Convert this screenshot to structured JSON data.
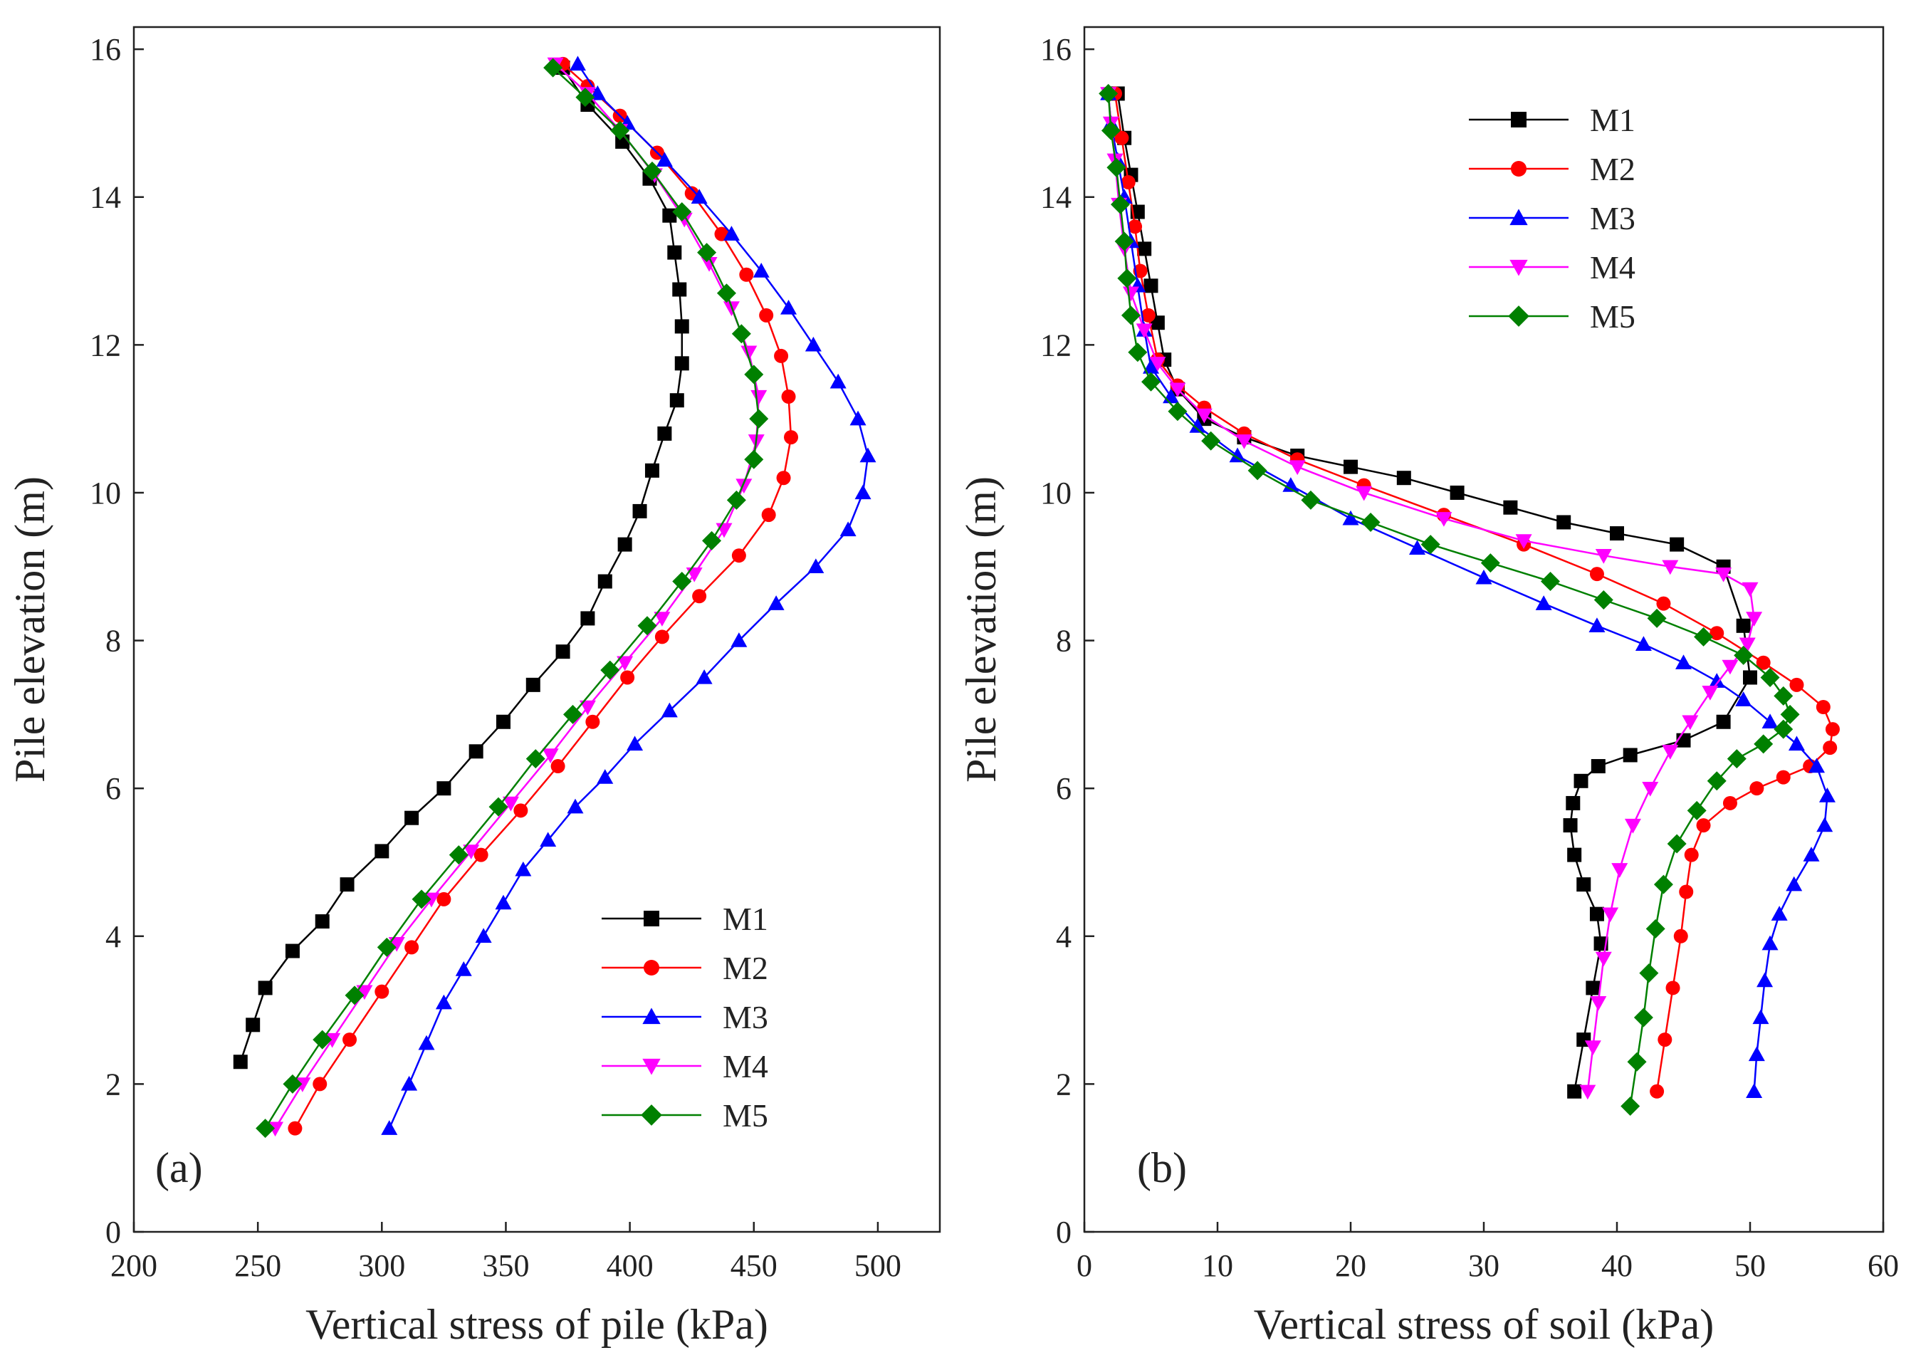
{
  "figure": {
    "background": "#ffffff"
  },
  "chart_data": [
    {
      "id": "a",
      "type": "line",
      "panel_label": "(a)",
      "xlabel": "Vertical stress of pile (kPa)",
      "ylabel": "Pile elevation (m)",
      "xlim": [
        200,
        525
      ],
      "ylim": [
        0,
        16.3
      ],
      "xticks": [
        200,
        250,
        300,
        350,
        400,
        450,
        500
      ],
      "yticks": [
        0,
        2,
        4,
        6,
        8,
        10,
        12,
        14,
        16
      ],
      "legend_position": "bottom-right",
      "series": [
        {
          "name": "M1",
          "color": "#000000",
          "marker": "square",
          "x": [
            243,
            248,
            253,
            264,
            276,
            286,
            300,
            312,
            325,
            338,
            349,
            361,
            373,
            383,
            390,
            398,
            404,
            409,
            414,
            419,
            421,
            421,
            420,
            418,
            416,
            408,
            397,
            383,
            373
          ],
          "y": [
            2.3,
            2.8,
            3.3,
            3.8,
            4.2,
            4.7,
            5.15,
            5.6,
            6.0,
            6.5,
            6.9,
            7.4,
            7.85,
            8.3,
            8.8,
            9.3,
            9.75,
            10.3,
            10.8,
            11.25,
            11.75,
            12.25,
            12.75,
            13.25,
            13.75,
            14.25,
            14.75,
            15.25,
            15.75
          ]
        },
        {
          "name": "M2",
          "color": "#ff0000",
          "marker": "circle",
          "x": [
            265,
            275,
            287,
            300,
            312,
            325,
            340,
            356,
            371,
            385,
            399,
            413,
            428,
            444,
            456,
            462,
            465,
            464,
            461,
            455,
            447,
            437,
            425,
            411,
            396,
            383,
            373
          ],
          "y": [
            1.4,
            2.0,
            2.6,
            3.25,
            3.85,
            4.5,
            5.1,
            5.7,
            6.3,
            6.9,
            7.5,
            8.05,
            8.6,
            9.15,
            9.7,
            10.2,
            10.75,
            11.3,
            11.85,
            12.4,
            12.95,
            13.5,
            14.05,
            14.6,
            15.1,
            15.5,
            15.8
          ]
        },
        {
          "name": "M3",
          "color": "#0000ff",
          "marker": "triangle-up",
          "x": [
            303,
            311,
            318,
            325,
            333,
            341,
            349,
            357,
            367,
            378,
            390,
            402,
            416,
            430,
            444,
            459,
            475,
            488,
            494,
            496,
            492,
            484,
            474,
            464,
            453,
            441,
            428,
            414,
            399,
            387,
            379
          ],
          "y": [
            1.4,
            2.0,
            2.55,
            3.1,
            3.55,
            4.0,
            4.45,
            4.9,
            5.3,
            5.75,
            6.15,
            6.6,
            7.05,
            7.5,
            8.0,
            8.5,
            9.0,
            9.5,
            10.0,
            10.5,
            11.0,
            11.5,
            12.0,
            12.5,
            13.0,
            13.5,
            14.0,
            14.5,
            15.0,
            15.4,
            15.8
          ]
        },
        {
          "name": "M4",
          "color": "#ff00ff",
          "marker": "triangle-down",
          "x": [
            257,
            268,
            280,
            293,
            306,
            320,
            336,
            352,
            368,
            383,
            398,
            413,
            426,
            438,
            446,
            451,
            452,
            448,
            441,
            432,
            422,
            410,
            396,
            383,
            370
          ],
          "y": [
            1.4,
            2.0,
            2.6,
            3.25,
            3.9,
            4.5,
            5.15,
            5.8,
            6.45,
            7.1,
            7.7,
            8.3,
            8.9,
            9.5,
            10.1,
            10.7,
            11.3,
            11.9,
            12.5,
            13.1,
            13.7,
            14.3,
            14.9,
            15.4,
            15.8
          ]
        },
        {
          "name": "M5",
          "color": "#008000",
          "marker": "diamond",
          "x": [
            253,
            264,
            276,
            289,
            302,
            316,
            331,
            347,
            362,
            377,
            392,
            407,
            421,
            433,
            443,
            450,
            452,
            450,
            445,
            439,
            431,
            421,
            409,
            396,
            382,
            369
          ],
          "y": [
            1.4,
            2.0,
            2.6,
            3.2,
            3.85,
            4.5,
            5.1,
            5.75,
            6.4,
            7.0,
            7.6,
            8.2,
            8.8,
            9.35,
            9.9,
            10.45,
            11.0,
            11.6,
            12.15,
            12.7,
            13.25,
            13.8,
            14.35,
            14.9,
            15.35,
            15.75
          ]
        }
      ]
    },
    {
      "id": "b",
      "type": "line",
      "panel_label": "(b)",
      "xlabel": "Vertical stress of soil (kPa)",
      "ylabel": "Pile elevation (m)",
      "xlim": [
        0,
        60
      ],
      "ylim": [
        0,
        16.3
      ],
      "xticks": [
        0,
        10,
        20,
        30,
        40,
        50,
        60
      ],
      "yticks": [
        0,
        2,
        4,
        6,
        8,
        10,
        12,
        14,
        16
      ],
      "legend_position": "top-right",
      "series": [
        {
          "name": "M1",
          "color": "#000000",
          "marker": "square",
          "x": [
            36.8,
            37.5,
            38.2,
            38.8,
            38.5,
            37.5,
            36.8,
            36.5,
            36.7,
            37.3,
            38.6,
            41.0,
            45.0,
            48.0,
            50.0,
            49.5,
            48.0,
            44.5,
            40.0,
            36.0,
            32.0,
            28.0,
            24.0,
            20.0,
            16.0,
            12.0,
            9.0,
            7.0,
            6.0,
            5.5,
            5.0,
            4.5,
            4.0,
            3.5,
            3.0,
            2.5
          ],
          "y": [
            1.9,
            2.6,
            3.3,
            3.9,
            4.3,
            4.7,
            5.1,
            5.5,
            5.8,
            6.1,
            6.3,
            6.45,
            6.65,
            6.9,
            7.5,
            8.2,
            9.0,
            9.3,
            9.45,
            9.6,
            9.8,
            10.0,
            10.2,
            10.35,
            10.5,
            10.75,
            11.0,
            11.4,
            11.8,
            12.3,
            12.8,
            13.3,
            13.8,
            14.3,
            14.8,
            15.4
          ]
        },
        {
          "name": "M2",
          "color": "#ff0000",
          "marker": "circle",
          "x": [
            43.0,
            43.6,
            44.2,
            44.8,
            45.2,
            45.6,
            46.5,
            48.5,
            50.5,
            52.5,
            54.5,
            56.0,
            56.2,
            55.5,
            53.5,
            51.0,
            47.5,
            43.5,
            38.5,
            33.0,
            27.0,
            21.0,
            16.0,
            12.0,
            9.0,
            7.0,
            5.5,
            4.8,
            4.2,
            3.8,
            3.3,
            2.8,
            2.3
          ],
          "y": [
            1.9,
            2.6,
            3.3,
            4.0,
            4.6,
            5.1,
            5.5,
            5.8,
            6.0,
            6.15,
            6.3,
            6.55,
            6.8,
            7.1,
            7.4,
            7.7,
            8.1,
            8.5,
            8.9,
            9.3,
            9.7,
            10.1,
            10.45,
            10.8,
            11.15,
            11.45,
            11.8,
            12.4,
            13.0,
            13.6,
            14.2,
            14.8,
            15.4
          ]
        },
        {
          "name": "M3",
          "color": "#0000ff",
          "marker": "triangle-up",
          "x": [
            50.3,
            50.5,
            50.8,
            51.1,
            51.5,
            52.2,
            53.3,
            54.6,
            55.6,
            55.8,
            55.0,
            53.5,
            51.5,
            49.5,
            47.5,
            45.0,
            42.0,
            38.5,
            34.5,
            30.0,
            25.0,
            20.0,
            15.5,
            11.5,
            8.5,
            6.5,
            5.0,
            4.5,
            4.0,
            3.5,
            3.0,
            2.5,
            2.0,
            1.8
          ],
          "y": [
            1.9,
            2.4,
            2.9,
            3.4,
            3.9,
            4.3,
            4.7,
            5.1,
            5.5,
            5.9,
            6.3,
            6.6,
            6.9,
            7.2,
            7.45,
            7.7,
            7.95,
            8.2,
            8.5,
            8.85,
            9.25,
            9.65,
            10.1,
            10.5,
            10.9,
            11.3,
            11.7,
            12.2,
            12.8,
            13.4,
            14.0,
            14.5,
            15.0,
            15.4
          ]
        },
        {
          "name": "M4",
          "color": "#ff00ff",
          "marker": "triangle-down",
          "x": [
            37.8,
            38.2,
            38.6,
            39.0,
            39.5,
            40.2,
            41.2,
            42.5,
            44.0,
            45.5,
            47.0,
            48.5,
            49.8,
            50.3,
            50.0,
            48.0,
            44.0,
            39.0,
            33.0,
            27.0,
            21.0,
            16.0,
            12.0,
            9.0,
            7.0,
            5.5,
            4.5,
            3.5,
            3.0,
            2.6,
            2.3,
            2.0,
            1.8
          ],
          "y": [
            1.9,
            2.5,
            3.1,
            3.7,
            4.3,
            4.9,
            5.5,
            6.0,
            6.5,
            6.9,
            7.3,
            7.65,
            7.95,
            8.3,
            8.7,
            8.9,
            9.0,
            9.15,
            9.35,
            9.65,
            10.0,
            10.35,
            10.7,
            11.05,
            11.4,
            11.75,
            12.2,
            12.7,
            13.3,
            13.9,
            14.5,
            15.0,
            15.4
          ]
        },
        {
          "name": "M5",
          "color": "#008000",
          "marker": "diamond",
          "x": [
            41.0,
            41.5,
            42.0,
            42.4,
            42.9,
            43.5,
            44.5,
            46.0,
            47.5,
            49.0,
            51.0,
            52.5,
            53.0,
            52.5,
            51.5,
            49.5,
            46.5,
            43.0,
            39.0,
            35.0,
            30.5,
            26.0,
            21.5,
            17.0,
            13.0,
            9.5,
            7.0,
            5.0,
            4.0,
            3.5,
            3.2,
            3.0,
            2.7,
            2.4,
            2.0,
            1.8
          ],
          "y": [
            1.7,
            2.3,
            2.9,
            3.5,
            4.1,
            4.7,
            5.25,
            5.7,
            6.1,
            6.4,
            6.6,
            6.8,
            7.0,
            7.25,
            7.5,
            7.8,
            8.05,
            8.3,
            8.55,
            8.8,
            9.05,
            9.3,
            9.6,
            9.9,
            10.3,
            10.7,
            11.1,
            11.5,
            11.9,
            12.4,
            12.9,
            13.4,
            13.9,
            14.4,
            14.9,
            15.4
          ]
        }
      ]
    }
  ]
}
